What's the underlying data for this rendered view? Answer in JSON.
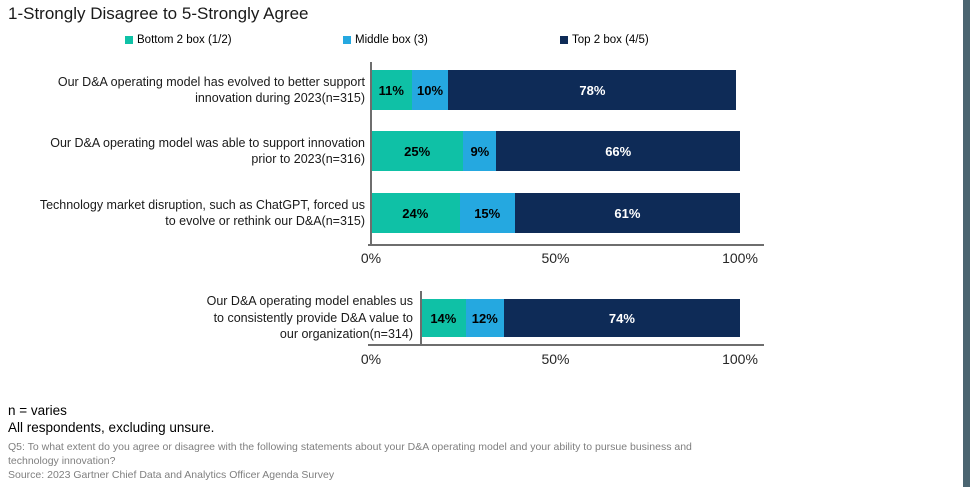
{
  "title": "1-Strongly Disagree to 5-Strongly Agree",
  "legend": {
    "items": [
      {
        "label": "Bottom 2 box (1/2)",
        "color": "#0FC1A6"
      },
      {
        "label": "Middle box (3)",
        "color": "#25A8E0"
      },
      {
        "label": "Top 2 box (4/5)",
        "color": "#0E2B57"
      }
    ]
  },
  "colors": {
    "bottom2_box": "#0FC1A6",
    "middle_box": "#25A8E0",
    "top2_box": "#0E2B57",
    "axis_line": "#6E6E6E",
    "right_edge_stripe": "#4B6571",
    "footnote_gray": "#7F7F7F"
  },
  "chart_data": [
    {
      "type": "bar",
      "orientation": "horizontal",
      "stacked": true,
      "title": "1-Strongly Disagree to 5-Strongly Agree",
      "categories": [
        "Our D&A operating model has evolved to better support\ninnovation during 2023(n=315)",
        "Our D&A operating model was able to support innovation\nprior to 2023(n=316)",
        "Technology market disruption, such as ChatGPT, forced us\nto evolve or rethink our D&A(n=315)"
      ],
      "series": [
        {
          "name": "Bottom 2 box (1/2)",
          "color": "#0FC1A6",
          "values": [
            11,
            25,
            24
          ]
        },
        {
          "name": "Middle box (3)",
          "color": "#25A8E0",
          "values": [
            10,
            9,
            15
          ]
        },
        {
          "name": "Top 2 box (4/5)",
          "color": "#0E2B57",
          "values": [
            78,
            66,
            61
          ]
        }
      ],
      "value_suffix": "%",
      "xlim": [
        0,
        100
      ],
      "x_ticks": [
        "0%",
        "50%",
        "100%"
      ],
      "legend_position": "top",
      "grid": false
    },
    {
      "type": "bar",
      "orientation": "horizontal",
      "stacked": true,
      "categories": [
        "Our D&A operating model enables us\nto consistently provide D&A value to\nour organization(n=314)"
      ],
      "series": [
        {
          "name": "Bottom 2 box (1/2)",
          "color": "#0FC1A6",
          "values": [
            14
          ]
        },
        {
          "name": "Middle box (3)",
          "color": "#25A8E0",
          "values": [
            12
          ]
        },
        {
          "name": "Top 2 box (4/5)",
          "color": "#0E2B57",
          "values": [
            74
          ]
        }
      ],
      "value_suffix": "%",
      "xlim": [
        0,
        100
      ],
      "x_ticks": [
        "0%",
        "50%",
        "100%"
      ],
      "grid": false
    }
  ],
  "footnotes": {
    "line1": "n = varies",
    "line2": "All respondents, excluding unsure.",
    "line3": "Q5: To what extent do you agree or disagree with the following statements about your D&A operating model and your ability to pursue business and technology innovation?",
    "line4": "Source: 2023 Gartner Chief Data and Analytics Officer Agenda Survey"
  }
}
